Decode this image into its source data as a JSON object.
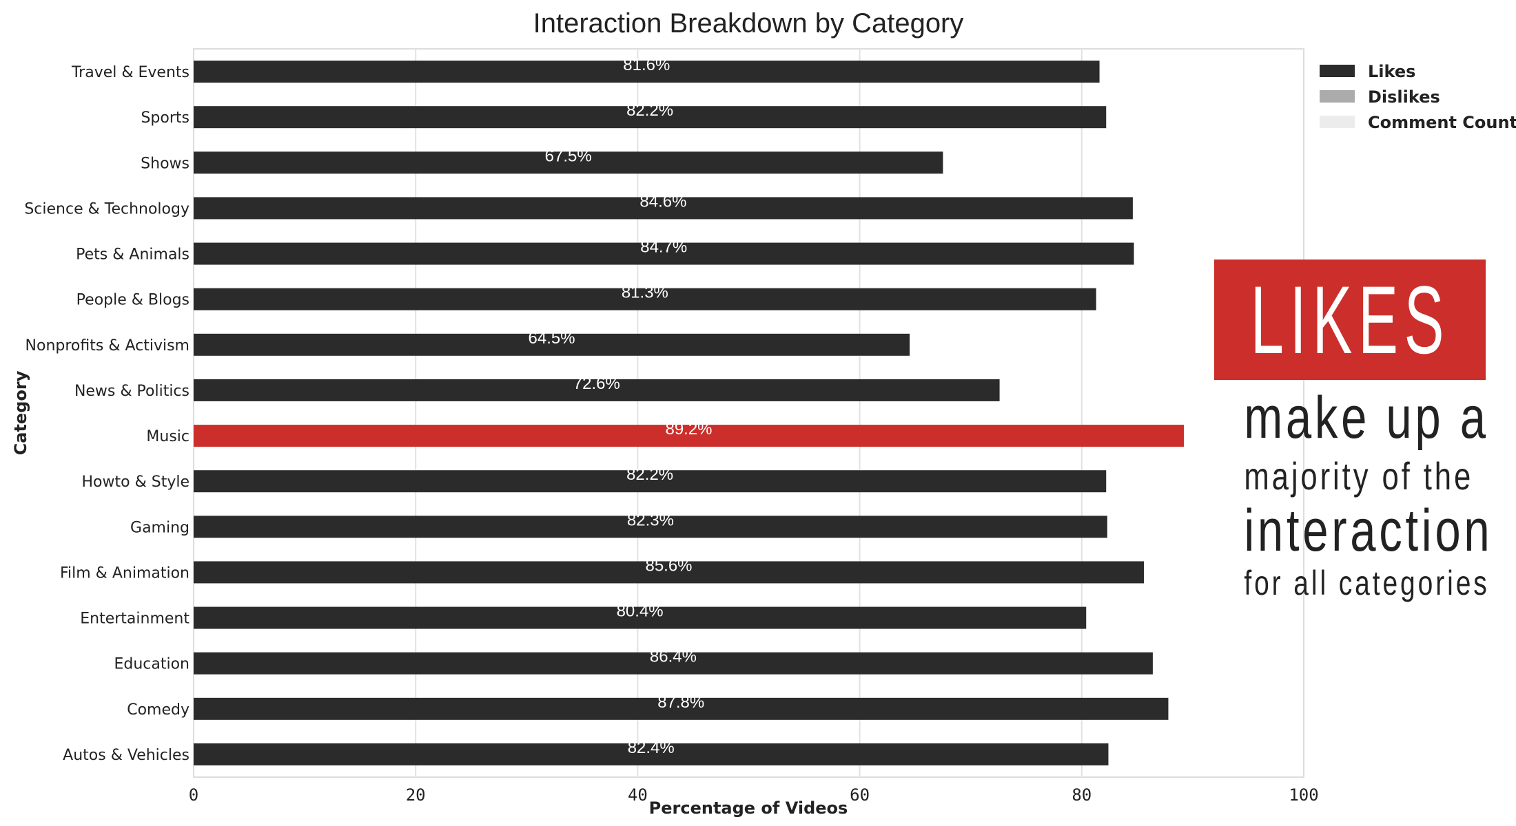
{
  "chart_data": {
    "type": "bar",
    "orientation": "horizontal",
    "title": "Interaction Breakdown by Category",
    "xlabel": "Percentage of Videos",
    "ylabel": "Category",
    "xlim": [
      0,
      100
    ],
    "xticks": [
      0,
      20,
      40,
      60,
      80,
      100
    ],
    "grid": true,
    "legend_position": "top-right",
    "categories": [
      "Travel & Events",
      "Sports",
      "Shows",
      "Science & Technology",
      "Pets & Animals",
      "People & Blogs",
      "Nonprofits & Activism",
      "News & Politics",
      "Music",
      "Howto & Style",
      "Gaming",
      "Film & Animation",
      "Entertainment",
      "Education",
      "Comedy",
      "Autos & Vehicles"
    ],
    "series": [
      {
        "name": "Likes",
        "color": "#2b2b2b",
        "values": [
          81.6,
          82.2,
          67.5,
          84.6,
          84.7,
          81.3,
          64.5,
          72.6,
          89.2,
          82.2,
          82.3,
          85.6,
          80.4,
          86.4,
          87.8,
          82.4
        ]
      },
      {
        "name": "Dislikes",
        "color": "#ababab",
        "values": [
          null,
          null,
          null,
          null,
          null,
          null,
          null,
          null,
          null,
          null,
          null,
          null,
          null,
          null,
          null,
          null
        ]
      },
      {
        "name": "Comment Count",
        "color": "#ececec",
        "values": [
          null,
          null,
          null,
          null,
          null,
          null,
          null,
          null,
          null,
          null,
          null,
          null,
          null,
          null,
          null,
          null
        ]
      }
    ],
    "data_labels": [
      "81.6%",
      "82.2%",
      "67.5%",
      "84.6%",
      "84.7%",
      "81.3%",
      "64.5%",
      "72.6%",
      "89.2%",
      "82.2%",
      "82.3%",
      "85.6%",
      "80.4%",
      "86.4%",
      "87.8%",
      "82.4%"
    ],
    "highlight": {
      "category": "Music",
      "color": "#cc2f2b"
    }
  },
  "callout": {
    "headline": "LIKES",
    "line1": "make up a",
    "line2": "majority of the",
    "line3": "interaction",
    "line4": "for all categories",
    "box_color": "#cc2f2b"
  }
}
